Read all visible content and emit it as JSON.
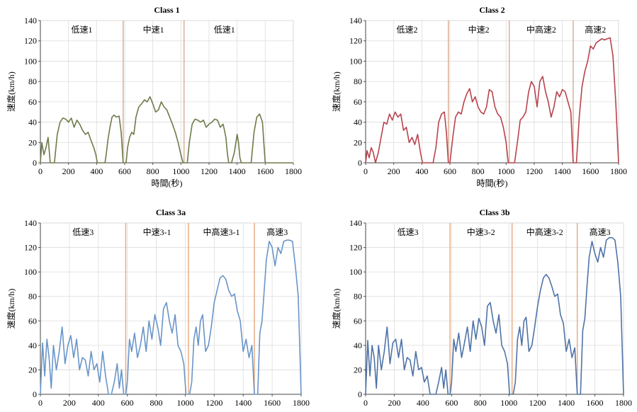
{
  "chart_data": [
    {
      "type": "line",
      "title": "Class 1",
      "xlabel": "時間(秒)",
      "ylabel": "速度(km/h)",
      "xlim": [
        0,
        1800
      ],
      "ylim": [
        0,
        140
      ],
      "xticks": [
        0,
        200,
        400,
        600,
        800,
        1000,
        1200,
        1400,
        1600,
        1800
      ],
      "yticks": [
        0,
        20,
        40,
        60,
        80,
        100,
        120,
        140
      ],
      "grid": true,
      "color": "#6e7b4a",
      "divider_color": "#d9a98c",
      "dividers": [
        589,
        1022
      ],
      "phases": [
        {
          "label": "低速1",
          "x": 295
        },
        {
          "label": "中速1",
          "x": 805
        },
        {
          "label": "低速1",
          "x": 1310
        }
      ],
      "series": [
        {
          "x": [
            0,
            10,
            25,
            40,
            55,
            70,
            85,
            100,
            120,
            140,
            160,
            180,
            200,
            220,
            240,
            260,
            280,
            300,
            320,
            340,
            360,
            380,
            395,
            405,
            420,
            430,
            440,
            450,
            460,
            470,
            480,
            495,
            510,
            525,
            540,
            560,
            575,
            589,
            600,
            610,
            620,
            635,
            650,
            665,
            680,
            700,
            720,
            740,
            760,
            780,
            800,
            820,
            840,
            860,
            880,
            900,
            920,
            940,
            960,
            980,
            1000,
            1015,
            1030,
            1045,
            1060,
            1080,
            1100,
            1120,
            1140,
            1160,
            1180,
            1200,
            1220,
            1240,
            1260,
            1280,
            1300,
            1310,
            1320,
            1330,
            1340,
            1350,
            1360,
            1380,
            1400,
            1410,
            1420,
            1430,
            1440,
            1460,
            1480,
            1500,
            1520,
            1540,
            1560,
            1580,
            1590,
            1600,
            1610,
            1800
          ],
          "y": [
            0,
            20,
            8,
            15,
            25,
            0,
            0,
            0,
            28,
            40,
            44,
            43,
            40,
            44,
            35,
            42,
            38,
            32,
            28,
            30,
            22,
            15,
            8,
            0,
            0,
            0,
            0,
            0,
            0,
            10,
            22,
            35,
            45,
            47,
            45,
            46,
            30,
            0,
            0,
            0,
            15,
            25,
            30,
            28,
            45,
            55,
            58,
            62,
            60,
            65,
            58,
            50,
            52,
            60,
            55,
            52,
            45,
            38,
            30,
            20,
            8,
            0,
            0,
            0,
            20,
            38,
            43,
            42,
            40,
            42,
            35,
            38,
            40,
            43,
            42,
            35,
            38,
            32,
            25,
            10,
            0,
            0,
            0,
            10,
            28,
            20,
            5,
            0,
            0,
            0,
            0,
            0,
            30,
            45,
            48,
            40,
            20,
            0,
            0,
            0
          ]
        }
      ]
    },
    {
      "type": "line",
      "title": "Class 2",
      "xlabel": "時間(秒)",
      "ylabel": "速度(km/h)",
      "xlim": [
        0,
        1800
      ],
      "ylim": [
        0,
        140
      ],
      "xticks": [
        0,
        200,
        400,
        600,
        800,
        1000,
        1200,
        1400,
        1600,
        1800
      ],
      "yticks": [
        0,
        20,
        40,
        60,
        80,
        100,
        120,
        140
      ],
      "grid": true,
      "color": "#b8434c",
      "divider_color": "#d9a98c",
      "dividers": [
        589,
        1022,
        1477
      ],
      "phases": [
        {
          "label": "低速2",
          "x": 295
        },
        {
          "label": "中速2",
          "x": 805
        },
        {
          "label": "中高速2",
          "x": 1250
        },
        {
          "label": "高速2",
          "x": 1635
        }
      ],
      "series": [
        {
          "x": [
            0,
            10,
            25,
            40,
            55,
            70,
            90,
            110,
            130,
            150,
            170,
            190,
            210,
            230,
            250,
            270,
            290,
            310,
            330,
            350,
            370,
            390,
            405,
            420,
            440,
            460,
            480,
            500,
            520,
            540,
            560,
            575,
            589,
            600,
            620,
            640,
            660,
            680,
            700,
            720,
            740,
            760,
            780,
            800,
            820,
            840,
            860,
            880,
            900,
            920,
            940,
            960,
            980,
            1000,
            1015,
            1030,
            1045,
            1060,
            1080,
            1100,
            1120,
            1140,
            1160,
            1180,
            1200,
            1220,
            1240,
            1260,
            1280,
            1300,
            1320,
            1340,
            1360,
            1380,
            1400,
            1420,
            1440,
            1460,
            1477,
            1490,
            1500,
            1520,
            1540,
            1560,
            1580,
            1600,
            1620,
            1640,
            1660,
            1680,
            1700,
            1720,
            1740,
            1760,
            1780,
            1800
          ],
          "y": [
            0,
            12,
            5,
            15,
            10,
            0,
            10,
            25,
            40,
            38,
            48,
            42,
            50,
            45,
            48,
            32,
            35,
            20,
            25,
            18,
            28,
            10,
            0,
            0,
            0,
            0,
            0,
            15,
            40,
            48,
            50,
            30,
            0,
            0,
            25,
            45,
            50,
            48,
            60,
            68,
            73,
            60,
            65,
            55,
            50,
            48,
            55,
            72,
            70,
            55,
            48,
            45,
            35,
            20,
            0,
            0,
            0,
            0,
            20,
            42,
            45,
            50,
            70,
            80,
            75,
            55,
            80,
            85,
            70,
            60,
            45,
            55,
            70,
            65,
            72,
            70,
            60,
            50,
            0,
            0,
            0,
            45,
            75,
            90,
            100,
            115,
            112,
            118,
            120,
            122,
            121,
            122,
            123,
            105,
            60,
            0
          ]
        }
      ]
    },
    {
      "type": "line",
      "title": "Class 3a",
      "xlabel": "時間(秒)",
      "ylabel": "速度(km/h)",
      "xlim": [
        0,
        1800
      ],
      "ylim": [
        0,
        140
      ],
      "xticks": [
        0,
        200,
        400,
        600,
        800,
        1000,
        1200,
        1400,
        1600,
        1800
      ],
      "yticks": [
        0,
        20,
        40,
        60,
        80,
        100,
        120,
        140
      ],
      "grid": true,
      "color": "#6a95c8",
      "divider_color": "#e8a77a",
      "dividers": [
        589,
        1022,
        1477
      ],
      "phases": [
        {
          "label": "低速3",
          "x": 295
        },
        {
          "label": "中速3-1",
          "x": 805
        },
        {
          "label": "中高速3-1",
          "x": 1250
        },
        {
          "label": "高速3",
          "x": 1635
        }
      ],
      "series": [
        {
          "x": [
            0,
            15,
            30,
            45,
            60,
            75,
            90,
            110,
            130,
            150,
            170,
            190,
            210,
            230,
            250,
            270,
            290,
            310,
            330,
            350,
            370,
            390,
            410,
            430,
            450,
            470,
            490,
            510,
            530,
            545,
            560,
            575,
            589,
            600,
            615,
            630,
            650,
            670,
            690,
            710,
            730,
            750,
            770,
            790,
            810,
            830,
            850,
            870,
            890,
            910,
            930,
            950,
            970,
            990,
            1005,
            1015,
            1030,
            1045,
            1060,
            1075,
            1090,
            1105,
            1120,
            1140,
            1160,
            1180,
            1200,
            1220,
            1240,
            1260,
            1280,
            1300,
            1320,
            1340,
            1360,
            1380,
            1400,
            1420,
            1440,
            1460,
            1477,
            1490,
            1500,
            1515,
            1530,
            1545,
            1560,
            1580,
            1600,
            1620,
            1640,
            1660,
            1680,
            1700,
            1720,
            1740,
            1760,
            1780,
            1800
          ],
          "y": [
            0,
            42,
            15,
            45,
            30,
            5,
            40,
            20,
            35,
            55,
            25,
            40,
            48,
            30,
            45,
            20,
            30,
            28,
            15,
            35,
            20,
            25,
            10,
            35,
            15,
            0,
            0,
            10,
            25,
            5,
            20,
            0,
            0,
            10,
            45,
            35,
            50,
            30,
            40,
            55,
            35,
            60,
            45,
            65,
            55,
            40,
            70,
            75,
            60,
            50,
            65,
            40,
            35,
            25,
            0,
            0,
            0,
            10,
            45,
            55,
            40,
            60,
            65,
            35,
            40,
            55,
            75,
            85,
            95,
            97,
            94,
            85,
            80,
            82,
            68,
            60,
            35,
            45,
            30,
            40,
            0,
            0,
            0,
            50,
            60,
            85,
            110,
            125,
            120,
            105,
            120,
            115,
            125,
            126,
            126,
            125,
            105,
            80,
            0
          ]
        }
      ]
    },
    {
      "type": "line",
      "title": "Class 3b",
      "xlabel": "時間(秒)",
      "ylabel": "速度(km/h)",
      "xlim": [
        0,
        1800
      ],
      "ylim": [
        0,
        140
      ],
      "xticks": [
        0,
        200,
        400,
        600,
        800,
        1000,
        1200,
        1400,
        1600,
        1800
      ],
      "yticks": [
        0,
        20,
        40,
        60,
        80,
        100,
        120,
        140
      ],
      "grid": true,
      "color": "#4f73a8",
      "divider_color": "#e8a77a",
      "dividers": [
        589,
        1022,
        1477
      ],
      "phases": [
        {
          "label": "低速3",
          "x": 295
        },
        {
          "label": "中速3-2",
          "x": 805
        },
        {
          "label": "中高速3-2",
          "x": 1250
        },
        {
          "label": "高速3",
          "x": 1635
        }
      ],
      "series": [
        {
          "x": [
            0,
            15,
            30,
            45,
            60,
            75,
            90,
            110,
            130,
            150,
            170,
            190,
            210,
            230,
            250,
            270,
            290,
            310,
            330,
            350,
            370,
            390,
            410,
            430,
            450,
            470,
            490,
            510,
            530,
            545,
            560,
            575,
            589,
            600,
            615,
            630,
            650,
            670,
            690,
            710,
            730,
            750,
            770,
            790,
            810,
            830,
            850,
            870,
            890,
            910,
            930,
            950,
            970,
            990,
            1005,
            1015,
            1030,
            1045,
            1060,
            1075,
            1090,
            1105,
            1120,
            1140,
            1160,
            1180,
            1200,
            1220,
            1240,
            1260,
            1280,
            1300,
            1320,
            1340,
            1360,
            1380,
            1400,
            1420,
            1440,
            1460,
            1477,
            1490,
            1500,
            1515,
            1530,
            1545,
            1560,
            1580,
            1600,
            1620,
            1640,
            1660,
            1680,
            1700,
            1720,
            1740,
            1760,
            1780,
            1800
          ],
          "y": [
            0,
            44,
            15,
            40,
            30,
            5,
            40,
            20,
            35,
            55,
            25,
            42,
            45,
            30,
            45,
            20,
            30,
            28,
            15,
            35,
            20,
            22,
            10,
            15,
            0,
            0,
            0,
            10,
            22,
            5,
            20,
            0,
            0,
            10,
            45,
            35,
            50,
            30,
            42,
            55,
            35,
            60,
            45,
            62,
            55,
            40,
            72,
            75,
            60,
            50,
            65,
            40,
            35,
            25,
            0,
            0,
            0,
            10,
            45,
            55,
            40,
            60,
            63,
            35,
            40,
            55,
            72,
            85,
            95,
            98,
            95,
            88,
            80,
            82,
            65,
            58,
            35,
            45,
            30,
            38,
            0,
            0,
            0,
            52,
            62,
            88,
            112,
            125,
            115,
            108,
            120,
            112,
            126,
            128,
            128,
            126,
            108,
            80,
            0
          ]
        }
      ]
    }
  ]
}
